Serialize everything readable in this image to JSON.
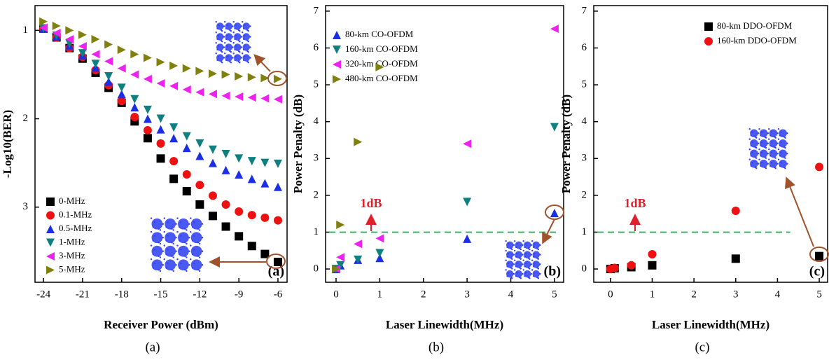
{
  "chart_data": [
    {
      "type": "scatter",
      "xlabel": "Receiver Power (dBm)",
      "ylabel": "-Log10(BER)",
      "panel_label": "(a)",
      "caption": "(a)",
      "x": [
        -24,
        -23,
        -22,
        -21,
        -20,
        -19,
        -18,
        -17,
        -16,
        -15,
        -14,
        -13,
        -12,
        -11,
        -10,
        -9,
        -8,
        -7,
        -6
      ],
      "series": [
        {
          "name": "0-MHz",
          "color": "#000000",
          "marker": "square",
          "values": [
            0.98,
            1.08,
            1.2,
            1.32,
            1.48,
            1.65,
            1.82,
            2.03,
            2.22,
            2.45,
            2.68,
            2.82,
            2.97,
            3.1,
            3.22,
            3.33,
            3.44,
            3.53,
            3.62
          ]
        },
        {
          "name": "0.1-MHz",
          "color": "#ee1111",
          "marker": "circle",
          "values": [
            0.98,
            1.08,
            1.2,
            1.3,
            1.45,
            1.62,
            1.8,
            1.98,
            2.13,
            2.28,
            2.48,
            2.63,
            2.75,
            2.87,
            2.97,
            3.05,
            3.09,
            3.12,
            3.15
          ]
        },
        {
          "name": "0.5-MHz",
          "color": "#1a2ee6",
          "marker": "triangle-up",
          "values": [
            0.98,
            1.07,
            1.17,
            1.28,
            1.42,
            1.58,
            1.72,
            1.87,
            2.0,
            2.12,
            2.22,
            2.33,
            2.42,
            2.5,
            2.58,
            2.63,
            2.68,
            2.73,
            2.77
          ]
        },
        {
          "name": "1-MHz",
          "color": "#0f8080",
          "marker": "triangle-down",
          "values": [
            0.98,
            1.06,
            1.15,
            1.26,
            1.38,
            1.52,
            1.65,
            1.78,
            1.9,
            2.0,
            2.1,
            2.2,
            2.28,
            2.35,
            2.4,
            2.45,
            2.48,
            2.5,
            2.51
          ]
        },
        {
          "name": "3-MHz",
          "color": "#ee22ee",
          "marker": "triangle-left",
          "values": [
            0.97,
            1.03,
            1.1,
            1.18,
            1.27,
            1.35,
            1.43,
            1.5,
            1.55,
            1.6,
            1.63,
            1.67,
            1.7,
            1.72,
            1.74,
            1.75,
            1.76,
            1.77,
            1.78
          ]
        },
        {
          "name": "5-MHz",
          "color": "#80800f",
          "marker": "triangle-right",
          "values": [
            0.9,
            0.95,
            1.0,
            1.05,
            1.1,
            1.16,
            1.22,
            1.27,
            1.31,
            1.36,
            1.4,
            1.43,
            1.46,
            1.49,
            1.5,
            1.52,
            1.53,
            1.54,
            1.55
          ]
        }
      ],
      "xlim": [
        -24.65,
        -5.3
      ],
      "ylim": [
        0.72,
        3.85
      ],
      "y_inverted": true,
      "xticks": [
        -24,
        -21,
        -18,
        -15,
        -12,
        -9,
        -6
      ],
      "yticks": [
        1,
        2,
        3
      ],
      "legend": "lower left"
    },
    {
      "type": "scatter",
      "xlabel": "Laser Linewidth(MHz)",
      "ylabel": "Power Penalty (dB)",
      "panel_label": "(b)",
      "caption": "(b)",
      "x": [
        0,
        0.1,
        0.5,
        1,
        3,
        5
      ],
      "series": [
        {
          "name": "80-km CO-OFDM",
          "color": "#1a2ee6",
          "marker": "triangle-up",
          "values": [
            0,
            0.1,
            0.25,
            0.3,
            0.82,
            1.52
          ]
        },
        {
          "name": "160-km  CO-OFDM",
          "color": "#0f8080",
          "marker": "triangle-down",
          "values": [
            0,
            0.1,
            0.25,
            0.43,
            1.82,
            3.85
          ]
        },
        {
          "name": "320-km  CO-OFDM",
          "color": "#ee22ee",
          "marker": "triangle-left",
          "values": [
            0,
            0.32,
            0.68,
            0.83,
            3.4,
            6.52
          ]
        },
        {
          "name": "480-km  CO-OFDM",
          "color": "#80800f",
          "marker": "triangle-right",
          "values": [
            0,
            1.2,
            3.45,
            5.48,
            null,
            null
          ]
        }
      ],
      "xlim": [
        -0.24,
        5.21
      ],
      "ylim": [
        -0.36,
        7.15
      ],
      "xticks": [
        0,
        1,
        2,
        3,
        4,
        5
      ],
      "yticks": [
        0,
        1,
        2,
        3,
        4,
        5,
        6,
        7
      ],
      "legend": "upper left",
      "reference_line": 1,
      "reference_color": "#22aa55",
      "annotation": "1dB"
    },
    {
      "type": "scatter",
      "xlabel": "Laser Linewidth(MHz)",
      "ylabel": "Power Penalty (dB)",
      "panel_label": "(c)",
      "caption": "(c)",
      "x": [
        0,
        0.1,
        0.5,
        1,
        3,
        5
      ],
      "series": [
        {
          "name": "80-km DDO-OFDM",
          "color": "#000000",
          "marker": "square",
          "values": [
            0,
            0.02,
            0.05,
            0.1,
            0.28,
            0.35
          ]
        },
        {
          "name": "160-km  DDO-OFDM",
          "color": "#ee1111",
          "marker": "circle",
          "values": [
            0,
            0.03,
            0.1,
            0.4,
            1.58,
            2.77
          ]
        }
      ],
      "xlim": [
        -0.4,
        5.2
      ],
      "ylim": [
        -0.36,
        7.15
      ],
      "xticks": [
        0,
        1,
        2,
        3,
        4,
        5
      ],
      "yticks": [
        0,
        1,
        2,
        3,
        4,
        5,
        6,
        7
      ],
      "legend": "upper right",
      "reference_line": 1,
      "reference_color": "#22aa55",
      "annotation": "1dB"
    }
  ]
}
